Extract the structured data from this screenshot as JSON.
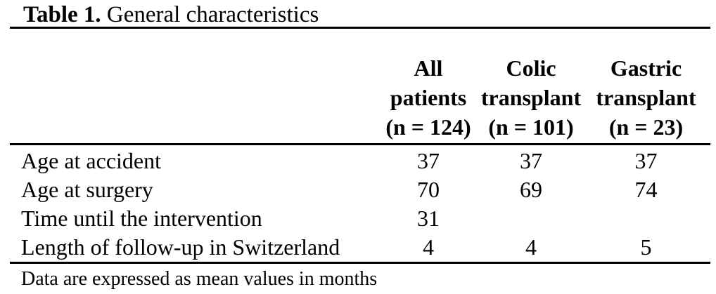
{
  "table": {
    "title_bold": "Table 1.",
    "title_regular": " General characteristics",
    "columns": [
      {
        "header": ""
      },
      {
        "header": "All\npatients\n(n = 124)"
      },
      {
        "header": "Colic\ntransplant\n(n = 101)"
      },
      {
        "header": "Gastric\ntransplant\n(n = 23)"
      }
    ],
    "rows": [
      {
        "label": "Age at accident",
        "values": [
          "37",
          "37",
          "37"
        ]
      },
      {
        "label": "Age at surgery",
        "values": [
          "70",
          "69",
          "74"
        ]
      },
      {
        "label": "Time until the intervention",
        "values": [
          "31",
          "",
          ""
        ]
      },
      {
        "label": "Length of follow-up in Switzerland",
        "values": [
          "4",
          "4",
          "5"
        ]
      }
    ],
    "footnote": "Data are expressed as mean values in months"
  },
  "colors": {
    "text": "#000000",
    "background": "#ffffff",
    "rule": "#000000"
  }
}
